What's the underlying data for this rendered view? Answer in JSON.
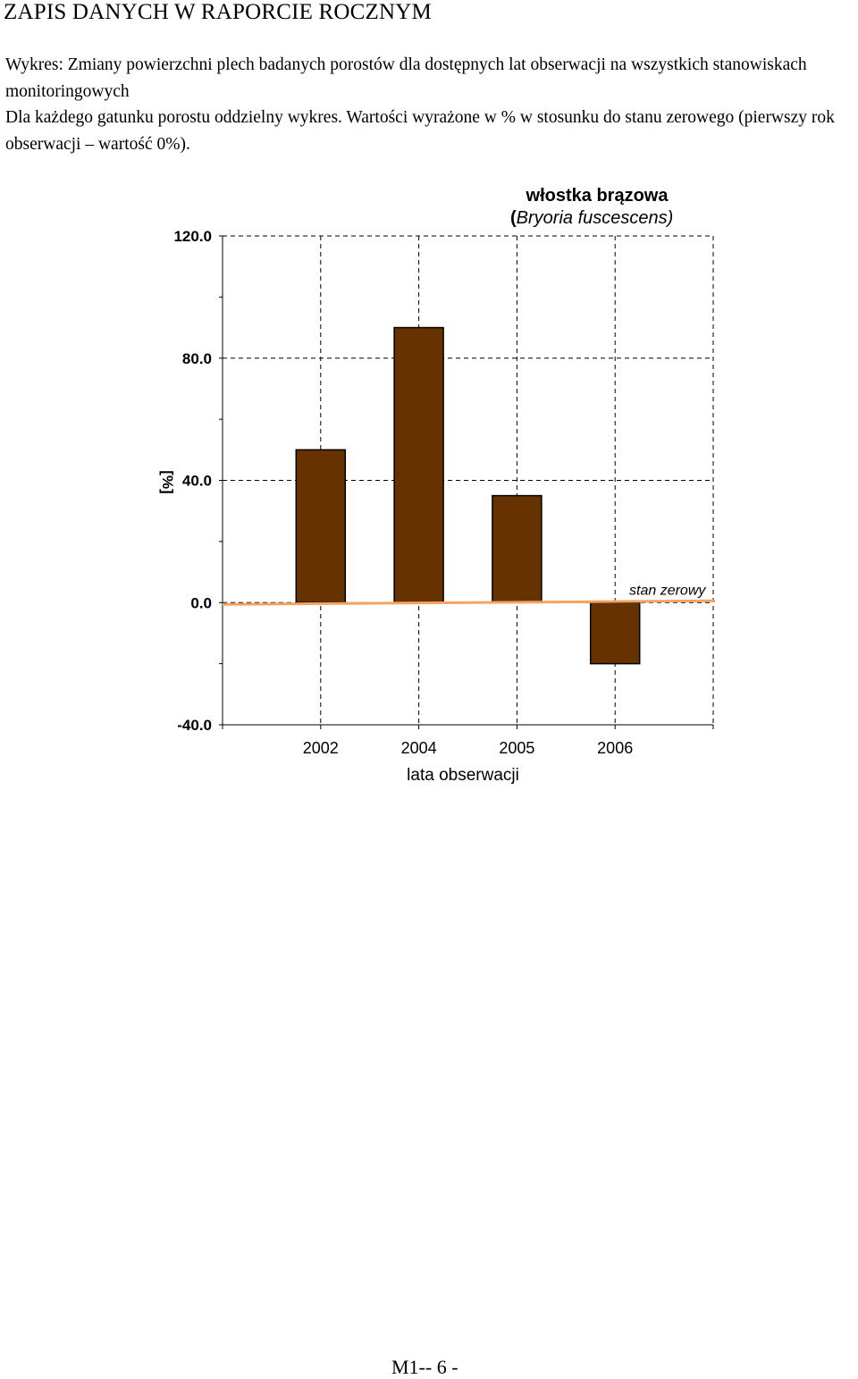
{
  "header": {
    "title": "ZAPIS DANYCH W RAPORCIE ROCZNYM"
  },
  "description": {
    "line1": "Wykres: Zmiany powierzchni plech badanych porostów dla dostępnych lat obserwacji na wszystkich stanowiskach monitoringowych",
    "line2": "Dla każdego gatunku porostu oddzielny wykres. Wartości wyrażone w % w stosunku do stanu zerowego (pierwszy rok obserwacji – wartość 0%)."
  },
  "chart_data": {
    "type": "bar",
    "title": "włostka brązowa",
    "subtitle_prefix": "(",
    "subtitle": "Bryoria fuscescens)",
    "categories": [
      "2002",
      "2004",
      "2005",
      "2006"
    ],
    "values": [
      50,
      90,
      35,
      -20
    ],
    "xlabel": "lata obserwacji",
    "ylabel": "[%]",
    "ylim": [
      -40,
      120
    ],
    "yticks": [
      "120.0",
      "80.0",
      "40.0",
      "0.0",
      "-40.0"
    ],
    "grid": true,
    "bar_color": "#663300",
    "baseline_color": "#f4a460",
    "baseline_label": "stan zerowy"
  },
  "footer": {
    "page_label": "M1-- 6 -"
  }
}
